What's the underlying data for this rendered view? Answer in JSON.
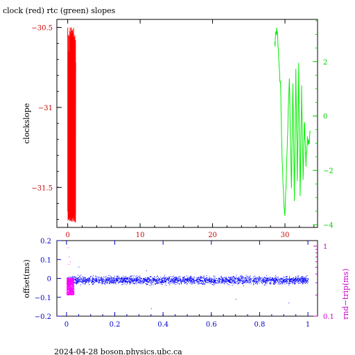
{
  "page": {
    "title": "clock (red) rtc (green) slopes",
    "footer": "2024-04-28 boson.physics.ubc.ca"
  },
  "colors": {
    "clock": "#ff0000",
    "rtc": "#00ee00",
    "offset": "#0000ff",
    "roundtrip": "#ff00ff",
    "frame": "#000000",
    "left_ticks_top": "#cc0000",
    "right_ticks_top": "#00cc00",
    "left_ticks_bottom": "#0000cc",
    "right_ticks_bottom": "#cc00cc"
  },
  "chart_data": [
    {
      "type": "line",
      "title": "clock (red) rtc (green) slopes",
      "ylabel": "clockslope",
      "xlim": [
        -1.5,
        34.5
      ],
      "ylim": [
        -31.75,
        -30.45
      ],
      "y2lim": [
        -4.1,
        3.55
      ],
      "x_ticks": [
        0,
        10,
        20,
        30
      ],
      "y_ticks": [
        -30.5,
        -31,
        -31.5
      ],
      "y_tick_labels": [
        "−30.5",
        "−31",
        "−31.5"
      ],
      "y2_ticks": [
        2,
        0,
        -2,
        -4
      ],
      "y2_tick_labels": [
        "2",
        "0",
        "−2",
        "−4"
      ],
      "grid": false,
      "series": [
        {
          "name": "clock",
          "axis": "left",
          "x": [
            0.0,
            0.1,
            0.2,
            0.3,
            0.4,
            0.5,
            0.6,
            0.7,
            0.8,
            0.9,
            1.0,
            1.1
          ],
          "y": [
            -31.65,
            -30.65,
            -31.7,
            -30.55,
            -31.6,
            -30.5,
            -31.68,
            -30.62,
            -31.55,
            -30.7,
            -31.62,
            -30.72
          ]
        },
        {
          "name": "rtc",
          "axis": "right",
          "x": [
            28.6,
            28.8,
            29.0,
            29.2,
            29.4,
            29.6,
            29.8,
            30.0,
            30.3,
            30.6,
            30.9,
            31.1,
            31.3,
            31.5,
            31.7,
            31.9,
            32.1,
            32.3,
            32.5,
            32.7,
            32.9,
            33.1,
            33.3,
            33.5
          ],
          "y": [
            2.6,
            3.2,
            2.9,
            1.8,
            1.0,
            -1.5,
            -3.0,
            -3.8,
            -1.2,
            1.5,
            -2.8,
            1.3,
            -3.2,
            1.7,
            -2.5,
            1.8,
            -2.9,
            1.0,
            -2.2,
            -0.2,
            -1.8,
            -0.8,
            -1.0,
            -0.6
          ]
        }
      ]
    },
    {
      "type": "scatter",
      "ylabel": "offset(ms)",
      "y2label": "rnd−trip(ms)",
      "xlim": [
        -0.04,
        1.04
      ],
      "ylim": [
        -0.2,
        0.2
      ],
      "y2lim": [
        0.1,
        1.2
      ],
      "y2_scale": "log",
      "x_ticks": [
        0,
        0.2,
        0.4,
        0.6,
        0.8,
        1
      ],
      "x_tick_labels": [
        "0",
        "0.2",
        "0.4",
        "0.6",
        "0.8",
        "1"
      ],
      "y_ticks": [
        0.2,
        0.1,
        0,
        -0.1,
        -0.2
      ],
      "y_tick_labels": [
        "0.2",
        "0.1",
        "0",
        "−0.1",
        "−0.2"
      ],
      "y2_ticks": [
        1,
        0.1
      ],
      "y2_tick_labels": [
        "1",
        "0.1"
      ],
      "grid": false,
      "series": [
        {
          "name": "offset",
          "axis": "left",
          "x_range": [
            0,
            1
          ],
          "y_center": -0.01,
          "y_spread": 0.03,
          "outliers": [
            [
              0.03,
              -0.07
            ],
            [
              0.33,
              0.04
            ],
            [
              0.35,
              -0.16
            ],
            [
              0.92,
              -0.13
            ],
            [
              0.05,
              0.06
            ],
            [
              0.7,
              -0.11
            ]
          ]
        },
        {
          "name": "roundtrip",
          "axis": "right",
          "x_range": [
            0,
            0.03
          ],
          "y_range": [
            0.2,
            0.35
          ],
          "outliers": [
            [
              0.005,
              0.95
            ],
            [
              0.01,
              0.7
            ],
            [
              0.015,
              0.6
            ],
            [
              0.008,
              0.55
            ]
          ]
        }
      ]
    }
  ]
}
